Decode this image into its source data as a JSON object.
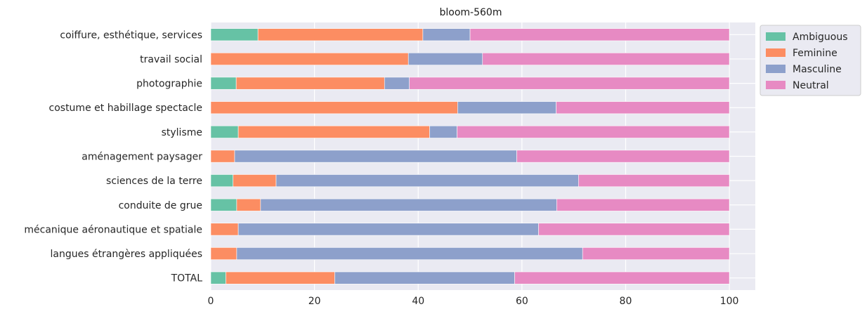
{
  "chart_data": {
    "type": "bar",
    "orientation": "horizontal",
    "stacked": true,
    "title": "bloom-560m",
    "xlabel": "",
    "ylabel": "",
    "xlim": [
      0,
      105
    ],
    "xticks": [
      0,
      20,
      40,
      60,
      80,
      100
    ],
    "grid": true,
    "legend_position": "upper right outside",
    "categories": [
      "coiffure, esthétique, services",
      "travail social",
      "photographie",
      "costume et habillage spectacle",
      "stylisme",
      "aménagement paysager",
      "sciences de la terre",
      "conduite de grue",
      "mécanique aéronautique et spatiale",
      "langues étrangères appliquées",
      "TOTAL"
    ],
    "series": [
      {
        "name": "Ambiguous",
        "color": "#66c2a5",
        "values": [
          9.1,
          0,
          4.9,
          0,
          5.3,
          0,
          4.3,
          5.0,
          0,
          0,
          2.9
        ]
      },
      {
        "name": "Feminine",
        "color": "#fc8d62",
        "values": [
          31.8,
          38.1,
          28.6,
          47.6,
          36.9,
          4.6,
          8.3,
          4.6,
          5.3,
          5.0,
          21.0
        ]
      },
      {
        "name": "Masculine",
        "color": "#8da0cb",
        "values": [
          9.1,
          14.3,
          4.8,
          19.0,
          5.3,
          54.4,
          58.3,
          57.1,
          57.9,
          66.7,
          34.7
        ]
      },
      {
        "name": "Neutral",
        "color": "#e78ac3",
        "values": [
          50.0,
          47.6,
          61.7,
          33.4,
          52.5,
          41.0,
          29.1,
          33.3,
          36.8,
          28.3,
          41.4
        ]
      }
    ]
  }
}
